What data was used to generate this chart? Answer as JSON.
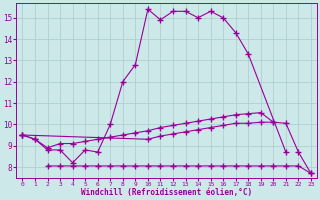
{
  "xlabel": "Windchill (Refroidissement éolien,°C)",
  "bg_color": "#cce8e8",
  "line_color": "#990099",
  "xlim": [
    -0.5,
    23.5
  ],
  "ylim": [
    7.5,
    15.7
  ],
  "yticks": [
    8,
    9,
    10,
    11,
    12,
    13,
    14,
    15
  ],
  "xticks": [
    0,
    1,
    2,
    3,
    4,
    5,
    6,
    7,
    8,
    9,
    10,
    11,
    12,
    13,
    14,
    15,
    16,
    17,
    18,
    19,
    20,
    21,
    22,
    23
  ],
  "series1_x": [
    0,
    1,
    2,
    3,
    4,
    5,
    6,
    7,
    8,
    9,
    10,
    11,
    12,
    13,
    14,
    15,
    16,
    17,
    18,
    21
  ],
  "series1_y": [
    9.5,
    9.3,
    8.8,
    8.8,
    8.2,
    8.8,
    8.7,
    10.0,
    12.0,
    12.8,
    15.4,
    14.9,
    15.3,
    15.3,
    15.0,
    15.3,
    15.0,
    14.3,
    13.3,
    8.7
  ],
  "series2_x": [
    0,
    1,
    2,
    3,
    4,
    5,
    6,
    7,
    8,
    9,
    10,
    11,
    12,
    13,
    14,
    15,
    16,
    17,
    18,
    19,
    20,
    21,
    22,
    23
  ],
  "series2_y": [
    9.5,
    9.3,
    8.9,
    9.1,
    9.1,
    9.2,
    9.3,
    9.4,
    9.5,
    9.6,
    9.7,
    9.85,
    9.95,
    10.05,
    10.15,
    10.25,
    10.35,
    10.45,
    10.5,
    10.55,
    10.1,
    10.05,
    8.7,
    7.7
  ],
  "series3_x": [
    0,
    10,
    11,
    12,
    13,
    14,
    15,
    16,
    17,
    18,
    19,
    20
  ],
  "series3_y": [
    9.5,
    9.3,
    9.45,
    9.55,
    9.65,
    9.75,
    9.85,
    9.95,
    10.05,
    10.05,
    10.1,
    10.1
  ],
  "series4_x": [
    2,
    3,
    4,
    5,
    6,
    7,
    8,
    9,
    10,
    11,
    12,
    13,
    14,
    15,
    16,
    17,
    18,
    19,
    20,
    21,
    22,
    23
  ],
  "series4_y": [
    8.05,
    8.05,
    8.05,
    8.05,
    8.05,
    8.05,
    8.05,
    8.05,
    8.05,
    8.05,
    8.05,
    8.05,
    8.05,
    8.05,
    8.05,
    8.05,
    8.05,
    8.05,
    8.05,
    8.05,
    8.05,
    7.7
  ]
}
